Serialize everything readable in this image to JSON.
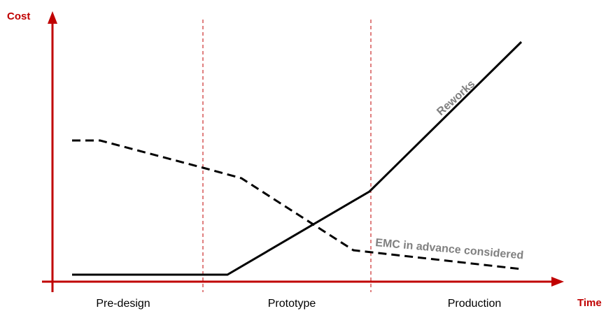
{
  "axes": {
    "y_label": "Cost",
    "x_label": "Time"
  },
  "phases": [
    "Pre-design",
    "Prototype",
    "Production"
  ],
  "curves": {
    "reworks": "Reworks",
    "emc": "EMC in advance considered"
  }
}
